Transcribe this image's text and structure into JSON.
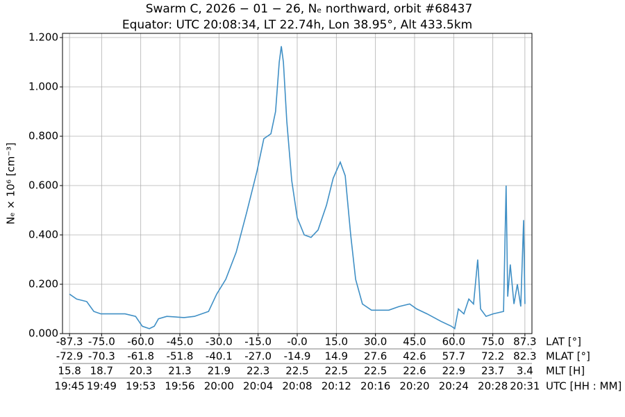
{
  "chart_data": {
    "type": "line",
    "title": "Swarm C, 2026 − 01 − 26, Nₑ northward, orbit #68437",
    "subtitle": "Equator: UTC 20:08:34, LT 22.74h, Lon 38.95°, Alt 433.5km",
    "y_label": "Nₑ × 10⁶ [cm⁻³]",
    "x_label": "LAT [°]",
    "xlim": [
      -90,
      90
    ],
    "ylim": [
      0,
      1.217
    ],
    "grid": true,
    "xticks": [
      -87.3,
      {
        "value": -75,
        "label": "-75.0"
      },
      {
        "value": -60,
        "label": "-60.0"
      },
      {
        "value": -45,
        "label": "-45.0"
      },
      {
        "value": -30,
        "label": "-30.0"
      },
      {
        "value": -15,
        "label": "-15.0"
      },
      {
        "value": 0,
        "label": "-0.0"
      },
      {
        "value": 15,
        "label": "15.0"
      },
      {
        "value": 30,
        "label": "30.0"
      },
      {
        "value": 45,
        "label": "45.0"
      },
      {
        "value": 60,
        "label": "60.0"
      },
      {
        "value": 75,
        "label": "75.0"
      },
      87.3
    ],
    "yticks": [
      {
        "value": 0,
        "label": "0.000"
      },
      {
        "value": 0.2,
        "label": "0.200"
      },
      {
        "value": 0.4,
        "label": "0.400"
      },
      {
        "value": 0.6,
        "label": "0.600"
      },
      {
        "value": 0.8,
        "label": "0.800"
      },
      {
        "value": 1.0,
        "label": "1.000"
      },
      {
        "value": 1.2,
        "label": "1.200"
      }
    ],
    "x_tick_rows": [
      {
        "name": "MLAT [°]",
        "labels": [
          "-72.9",
          "-70.3",
          "-61.8",
          "-51.8",
          "-40.1",
          "-27.0",
          "-14.9",
          "14.9",
          "27.6",
          "42.6",
          "57.7",
          "72.2",
          "82.3"
        ]
      },
      {
        "name": "MLT [H]",
        "labels": [
          "15.8",
          "18.7",
          "20.3",
          "21.3",
          "21.9",
          "22.3",
          "22.5",
          "22.5",
          "22.5",
          "22.6",
          "22.9",
          "23.7",
          "3.4"
        ]
      },
      {
        "name": "UTC [HH : MM]",
        "labels": [
          "19:45",
          "19:49",
          "19:53",
          "19:56",
          "20:00",
          "20:04",
          "20:08",
          "20:12",
          "20:16",
          "20:20",
          "20:24",
          "20:28",
          "20:31"
        ]
      }
    ],
    "series": [
      {
        "color": "#3f8fc5",
        "x": [
          -87.3,
          -84.6,
          -80.7,
          -78.0,
          -75.3,
          -66.0,
          -62.0,
          -59.4,
          -56.7,
          -54.8,
          -53.2,
          -50.0,
          -43.4,
          -39.4,
          -34.0,
          -30.9,
          -27.4,
          -23.4,
          -19.4,
          -15.4,
          -12.8,
          -10.1,
          -8.3,
          -6.9,
          -6.1,
          -5.3,
          -4.0,
          -2.1,
          0,
          2.7,
          5.3,
          8.0,
          11.2,
          13.8,
          16.5,
          18.4,
          20.5,
          22.4,
          25.0,
          28.5,
          35.1,
          39.1,
          43.1,
          45.8,
          49.8,
          55.1,
          59.1,
          60.4,
          61.8,
          63.9,
          65.8,
          67.6,
          69.2,
          70.3,
          72.4,
          75.1,
          79.1,
          80.1,
          80.7,
          81.7,
          83.1,
          84.4,
          85.7,
          86.8,
          87.3
        ],
        "values": [
          0.16,
          0.14,
          0.13,
          0.09,
          0.08,
          0.08,
          0.07,
          0.03,
          0.02,
          0.03,
          0.06,
          0.07,
          0.065,
          0.07,
          0.09,
          0.16,
          0.22,
          0.33,
          0.49,
          0.66,
          0.79,
          0.81,
          0.9,
          1.1,
          1.165,
          1.1,
          0.86,
          0.62,
          0.47,
          0.4,
          0.39,
          0.42,
          0.52,
          0.63,
          0.695,
          0.64,
          0.4,
          0.22,
          0.12,
          0.095,
          0.095,
          0.11,
          0.12,
          0.1,
          0.08,
          0.05,
          0.03,
          0.02,
          0.1,
          0.08,
          0.14,
          0.12,
          0.3,
          0.1,
          0.07,
          0.08,
          0.09,
          0.6,
          0.15,
          0.28,
          0.12,
          0.2,
          0.11,
          0.46,
          0.12
        ]
      }
    ]
  }
}
